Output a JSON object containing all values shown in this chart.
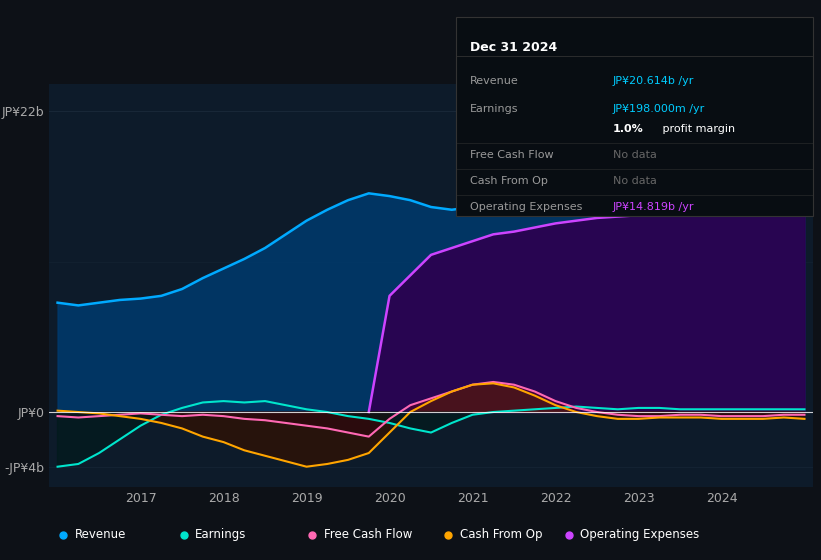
{
  "bg_color": "#0d1117",
  "plot_bg_color": "#0d1b2a",
  "ylabel_top": "JP¥22b",
  "ylabel_zero": "JP¥0",
  "ylabel_neg": "-JP¥4b",
  "x_ticks": [
    2017,
    2018,
    2019,
    2020,
    2021,
    2022,
    2023,
    2024
  ],
  "legend_items": [
    {
      "label": "Revenue",
      "color": "#00aaff"
    },
    {
      "label": "Earnings",
      "color": "#00e5cc"
    },
    {
      "label": "Free Cash Flow",
      "color": "#ff69b4"
    },
    {
      "label": "Cash From Op",
      "color": "#ffa500"
    },
    {
      "label": "Operating Expenses",
      "color": "#cc44ff"
    }
  ],
  "info_box_title": "Dec 31 2024",
  "info_rows": [
    {
      "label": "Revenue",
      "value": "JP¥20.614b /yr",
      "value_color": "#00ccff"
    },
    {
      "label": "Earnings",
      "value": "JP¥198.000m /yr",
      "value_color": "#00ccff"
    },
    {
      "label": "",
      "value": "1.0% profit margin",
      "value_color": "#ffffff",
      "bold_prefix": "1.0%"
    },
    {
      "label": "Free Cash Flow",
      "value": "No data",
      "value_color": "#666666"
    },
    {
      "label": "Cash From Op",
      "value": "No data",
      "value_color": "#666666"
    },
    {
      "label": "Operating Expenses",
      "value": "JP¥14.819b /yr",
      "value_color": "#cc44ff"
    }
  ],
  "revenue_x": [
    2016.0,
    2016.25,
    2016.5,
    2016.75,
    2017.0,
    2017.25,
    2017.5,
    2017.75,
    2018.0,
    2018.25,
    2018.5,
    2018.75,
    2019.0,
    2019.25,
    2019.5,
    2019.75,
    2020.0,
    2020.25,
    2020.5,
    2020.75,
    2021.0,
    2021.25,
    2021.5,
    2021.75,
    2022.0,
    2022.25,
    2022.5,
    2022.75,
    2023.0,
    2023.25,
    2023.5,
    2023.75,
    2024.0,
    2024.25,
    2024.5,
    2024.75,
    2025.0
  ],
  "revenue_y": [
    8.0,
    7.8,
    8.0,
    8.2,
    8.3,
    8.5,
    9.0,
    9.8,
    10.5,
    11.2,
    12.0,
    13.0,
    14.0,
    14.8,
    15.5,
    16.0,
    15.8,
    15.5,
    15.0,
    14.8,
    15.0,
    15.2,
    15.5,
    15.6,
    15.8,
    16.0,
    16.2,
    16.5,
    16.8,
    17.0,
    17.5,
    18.5,
    19.5,
    20.0,
    20.3,
    20.5,
    20.6
  ],
  "revenue_color": "#00aaff",
  "opex_x": [
    2019.75,
    2020.0,
    2020.25,
    2020.5,
    2020.75,
    2021.0,
    2021.25,
    2021.5,
    2021.75,
    2022.0,
    2022.25,
    2022.5,
    2022.75,
    2023.0,
    2023.25,
    2023.5,
    2023.75,
    2024.0,
    2024.25,
    2024.5,
    2024.75,
    2025.0
  ],
  "opex_y": [
    0.0,
    8.5,
    10.0,
    11.5,
    12.0,
    12.5,
    13.0,
    13.2,
    13.5,
    13.8,
    14.0,
    14.2,
    14.3,
    14.4,
    14.5,
    14.6,
    14.7,
    14.8,
    14.85,
    14.9,
    14.85,
    14.819
  ],
  "opex_color": "#cc44ff",
  "earnings_x": [
    2016.0,
    2016.25,
    2016.5,
    2016.75,
    2017.0,
    2017.25,
    2017.5,
    2017.75,
    2018.0,
    2018.25,
    2018.5,
    2018.75,
    2019.0,
    2019.25,
    2019.5,
    2019.75,
    2020.0,
    2020.25,
    2020.5,
    2020.75,
    2021.0,
    2021.25,
    2021.5,
    2021.75,
    2022.0,
    2022.25,
    2022.5,
    2022.75,
    2023.0,
    2023.25,
    2023.5,
    2023.75,
    2024.0,
    2024.25,
    2024.5,
    2024.75,
    2025.0
  ],
  "earnings_y": [
    -4.0,
    -3.8,
    -3.0,
    -2.0,
    -1.0,
    -0.2,
    0.3,
    0.7,
    0.8,
    0.7,
    0.8,
    0.5,
    0.2,
    0.0,
    -0.3,
    -0.5,
    -0.8,
    -1.2,
    -1.5,
    -0.8,
    -0.2,
    0.0,
    0.1,
    0.2,
    0.3,
    0.4,
    0.3,
    0.2,
    0.3,
    0.3,
    0.2,
    0.2,
    0.2,
    0.2,
    0.2,
    0.2,
    0.198
  ],
  "earnings_color": "#00e5cc",
  "fcf_x": [
    2016.0,
    2016.25,
    2016.5,
    2016.75,
    2017.0,
    2017.25,
    2017.5,
    2017.75,
    2018.0,
    2018.25,
    2018.5,
    2018.75,
    2019.0,
    2019.25,
    2019.5,
    2019.75,
    2020.0,
    2020.25,
    2020.5,
    2020.75,
    2021.0,
    2021.25,
    2021.5,
    2021.75,
    2022.0,
    2022.25,
    2022.5,
    2022.75,
    2023.0,
    2023.25,
    2023.5,
    2023.75,
    2024.0,
    2024.25,
    2024.5,
    2024.75,
    2025.0
  ],
  "fcf_y": [
    -0.3,
    -0.4,
    -0.3,
    -0.2,
    -0.1,
    -0.2,
    -0.3,
    -0.2,
    -0.3,
    -0.5,
    -0.6,
    -0.8,
    -1.0,
    -1.2,
    -1.5,
    -1.8,
    -0.5,
    0.5,
    1.0,
    1.5,
    2.0,
    2.2,
    2.0,
    1.5,
    0.8,
    0.3,
    0.0,
    -0.2,
    -0.3,
    -0.3,
    -0.2,
    -0.2,
    -0.3,
    -0.3,
    -0.3,
    -0.2,
    -0.2
  ],
  "fcf_color": "#ff69b4",
  "cfo_x": [
    2016.0,
    2016.25,
    2016.5,
    2016.75,
    2017.0,
    2017.25,
    2017.5,
    2017.75,
    2018.0,
    2018.25,
    2018.5,
    2018.75,
    2019.0,
    2019.25,
    2019.5,
    2019.75,
    2020.0,
    2020.25,
    2020.5,
    2020.75,
    2021.0,
    2021.25,
    2021.5,
    2021.75,
    2022.0,
    2022.25,
    2022.5,
    2022.75,
    2023.0,
    2023.25,
    2023.5,
    2023.75,
    2024.0,
    2024.25,
    2024.5,
    2024.75,
    2025.0
  ],
  "cfo_y": [
    0.1,
    0.0,
    -0.1,
    -0.3,
    -0.5,
    -0.8,
    -1.2,
    -1.8,
    -2.2,
    -2.8,
    -3.2,
    -3.6,
    -4.0,
    -3.8,
    -3.5,
    -3.0,
    -1.5,
    0.0,
    0.8,
    1.5,
    2.0,
    2.1,
    1.8,
    1.2,
    0.5,
    0.0,
    -0.3,
    -0.5,
    -0.5,
    -0.4,
    -0.4,
    -0.4,
    -0.5,
    -0.5,
    -0.5,
    -0.4,
    -0.5
  ],
  "cfo_color": "#ffa500",
  "ylim": [
    -5.5,
    24
  ],
  "xlim": [
    2015.9,
    2025.1
  ],
  "grid_color": "#1a2a3a",
  "tick_color": "#aaaaaa"
}
